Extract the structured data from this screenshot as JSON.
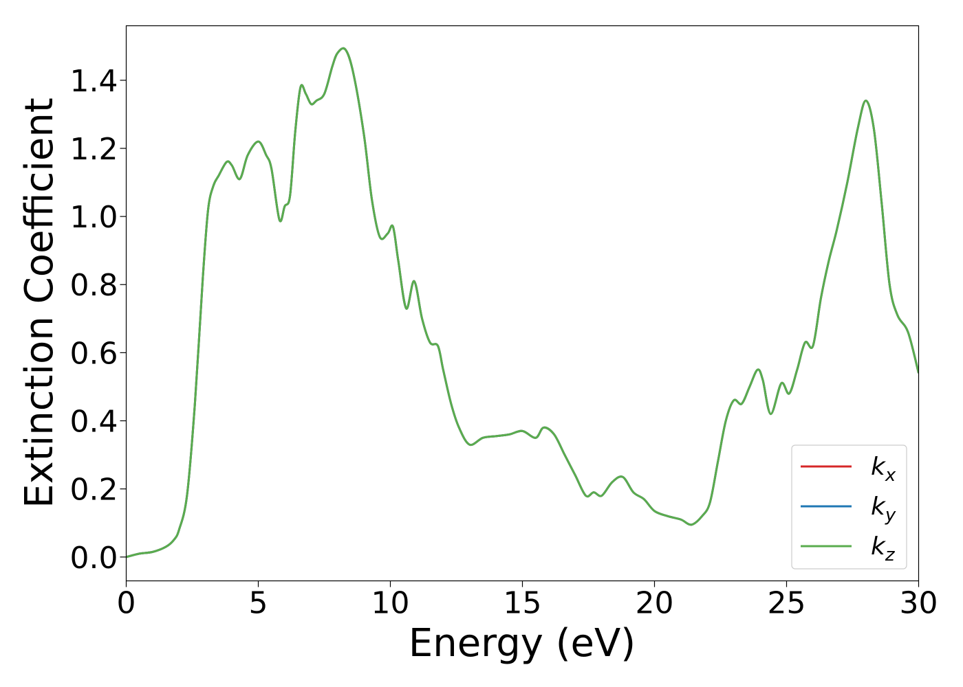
{
  "chart_data": {
    "type": "line",
    "title": "",
    "xlabel": "Energy (eV)",
    "ylabel": "Extinction Coefficient",
    "xlim": [
      0,
      30
    ],
    "ylim": [
      -0.07,
      1.56
    ],
    "xticks": [
      0,
      5,
      10,
      15,
      20,
      25,
      30
    ],
    "xtick_labels": [
      "0",
      "5",
      "10",
      "15",
      "20",
      "25",
      "30"
    ],
    "yticks": [
      0.0,
      0.2,
      0.4,
      0.6,
      0.8,
      1.0,
      1.2,
      1.4
    ],
    "ytick_labels": [
      "0.0",
      "0.2",
      "0.4",
      "0.6",
      "0.8",
      "1.0",
      "1.2",
      "1.4"
    ],
    "grid": false,
    "legend_position": "lower-right",
    "x": [
      0,
      0.5,
      1.0,
      1.5,
      1.8,
      2.0,
      2.3,
      2.6,
      2.9,
      3.1,
      3.3,
      3.5,
      3.8,
      4.0,
      4.3,
      4.6,
      5.0,
      5.3,
      5.5,
      5.8,
      6.0,
      6.2,
      6.4,
      6.6,
      6.8,
      7.0,
      7.2,
      7.5,
      7.8,
      8.0,
      8.3,
      8.6,
      9.0,
      9.3,
      9.6,
      9.9,
      10.1,
      10.3,
      10.6,
      10.9,
      11.2,
      11.5,
      11.8,
      12.0,
      12.3,
      12.6,
      13.0,
      13.5,
      14.0,
      14.5,
      15.0,
      15.5,
      15.8,
      16.2,
      16.6,
      17.0,
      17.4,
      17.7,
      18.0,
      18.4,
      18.8,
      19.2,
      19.6,
      20.0,
      20.5,
      21.0,
      21.4,
      21.8,
      22.1,
      22.4,
      22.7,
      23.0,
      23.3,
      23.6,
      23.9,
      24.1,
      24.4,
      24.8,
      25.1,
      25.4,
      25.7,
      26.0,
      26.3,
      26.6,
      26.9,
      27.3,
      27.7,
      28.0,
      28.3,
      28.6,
      28.9,
      29.2,
      29.6,
      30.0
    ],
    "series": [
      {
        "name": "k_x",
        "legend_main": "k",
        "legend_sub": "x",
        "color": "#d62728",
        "values": [
          0.0,
          0.01,
          0.015,
          0.03,
          0.05,
          0.08,
          0.18,
          0.45,
          0.82,
          1.02,
          1.09,
          1.12,
          1.16,
          1.15,
          1.11,
          1.18,
          1.22,
          1.18,
          1.14,
          0.99,
          1.03,
          1.06,
          1.25,
          1.38,
          1.36,
          1.33,
          1.34,
          1.36,
          1.44,
          1.48,
          1.49,
          1.42,
          1.24,
          1.05,
          0.94,
          0.95,
          0.97,
          0.87,
          0.73,
          0.81,
          0.7,
          0.63,
          0.62,
          0.55,
          0.45,
          0.38,
          0.33,
          0.35,
          0.355,
          0.36,
          0.37,
          0.35,
          0.38,
          0.36,
          0.3,
          0.24,
          0.18,
          0.19,
          0.18,
          0.22,
          0.235,
          0.19,
          0.17,
          0.135,
          0.12,
          0.11,
          0.095,
          0.12,
          0.16,
          0.28,
          0.4,
          0.46,
          0.45,
          0.5,
          0.55,
          0.52,
          0.42,
          0.51,
          0.48,
          0.55,
          0.63,
          0.62,
          0.76,
          0.87,
          0.96,
          1.1,
          1.26,
          1.34,
          1.26,
          1.04,
          0.8,
          0.71,
          0.66,
          0.54
        ]
      },
      {
        "name": "k_y",
        "legend_main": "k",
        "legend_sub": "y",
        "color": "#1f77b4",
        "values": [
          0.0,
          0.01,
          0.015,
          0.03,
          0.05,
          0.08,
          0.18,
          0.45,
          0.82,
          1.02,
          1.09,
          1.12,
          1.16,
          1.15,
          1.11,
          1.18,
          1.22,
          1.18,
          1.14,
          0.99,
          1.03,
          1.06,
          1.25,
          1.38,
          1.36,
          1.33,
          1.34,
          1.36,
          1.44,
          1.48,
          1.49,
          1.42,
          1.24,
          1.05,
          0.94,
          0.95,
          0.97,
          0.87,
          0.73,
          0.81,
          0.7,
          0.63,
          0.62,
          0.55,
          0.45,
          0.38,
          0.33,
          0.35,
          0.355,
          0.36,
          0.37,
          0.35,
          0.38,
          0.36,
          0.3,
          0.24,
          0.18,
          0.19,
          0.18,
          0.22,
          0.235,
          0.19,
          0.17,
          0.135,
          0.12,
          0.11,
          0.095,
          0.12,
          0.16,
          0.28,
          0.4,
          0.46,
          0.45,
          0.5,
          0.55,
          0.52,
          0.42,
          0.51,
          0.48,
          0.55,
          0.63,
          0.62,
          0.76,
          0.87,
          0.96,
          1.1,
          1.26,
          1.34,
          1.26,
          1.04,
          0.8,
          0.71,
          0.66,
          0.54
        ]
      },
      {
        "name": "k_z",
        "legend_main": "k",
        "legend_sub": "z",
        "color": "#5aac4e",
        "values": [
          0.0,
          0.01,
          0.015,
          0.03,
          0.05,
          0.08,
          0.18,
          0.45,
          0.82,
          1.02,
          1.09,
          1.12,
          1.16,
          1.15,
          1.11,
          1.18,
          1.22,
          1.18,
          1.14,
          0.99,
          1.03,
          1.06,
          1.25,
          1.38,
          1.36,
          1.33,
          1.34,
          1.36,
          1.44,
          1.48,
          1.49,
          1.42,
          1.24,
          1.05,
          0.94,
          0.95,
          0.97,
          0.87,
          0.73,
          0.81,
          0.7,
          0.63,
          0.62,
          0.55,
          0.45,
          0.38,
          0.33,
          0.35,
          0.355,
          0.36,
          0.37,
          0.35,
          0.38,
          0.36,
          0.3,
          0.24,
          0.18,
          0.19,
          0.18,
          0.22,
          0.235,
          0.19,
          0.17,
          0.135,
          0.12,
          0.11,
          0.095,
          0.12,
          0.16,
          0.28,
          0.4,
          0.46,
          0.45,
          0.5,
          0.55,
          0.52,
          0.42,
          0.51,
          0.48,
          0.55,
          0.63,
          0.62,
          0.76,
          0.87,
          0.96,
          1.1,
          1.26,
          1.34,
          1.26,
          1.04,
          0.8,
          0.71,
          0.66,
          0.54
        ]
      }
    ]
  }
}
